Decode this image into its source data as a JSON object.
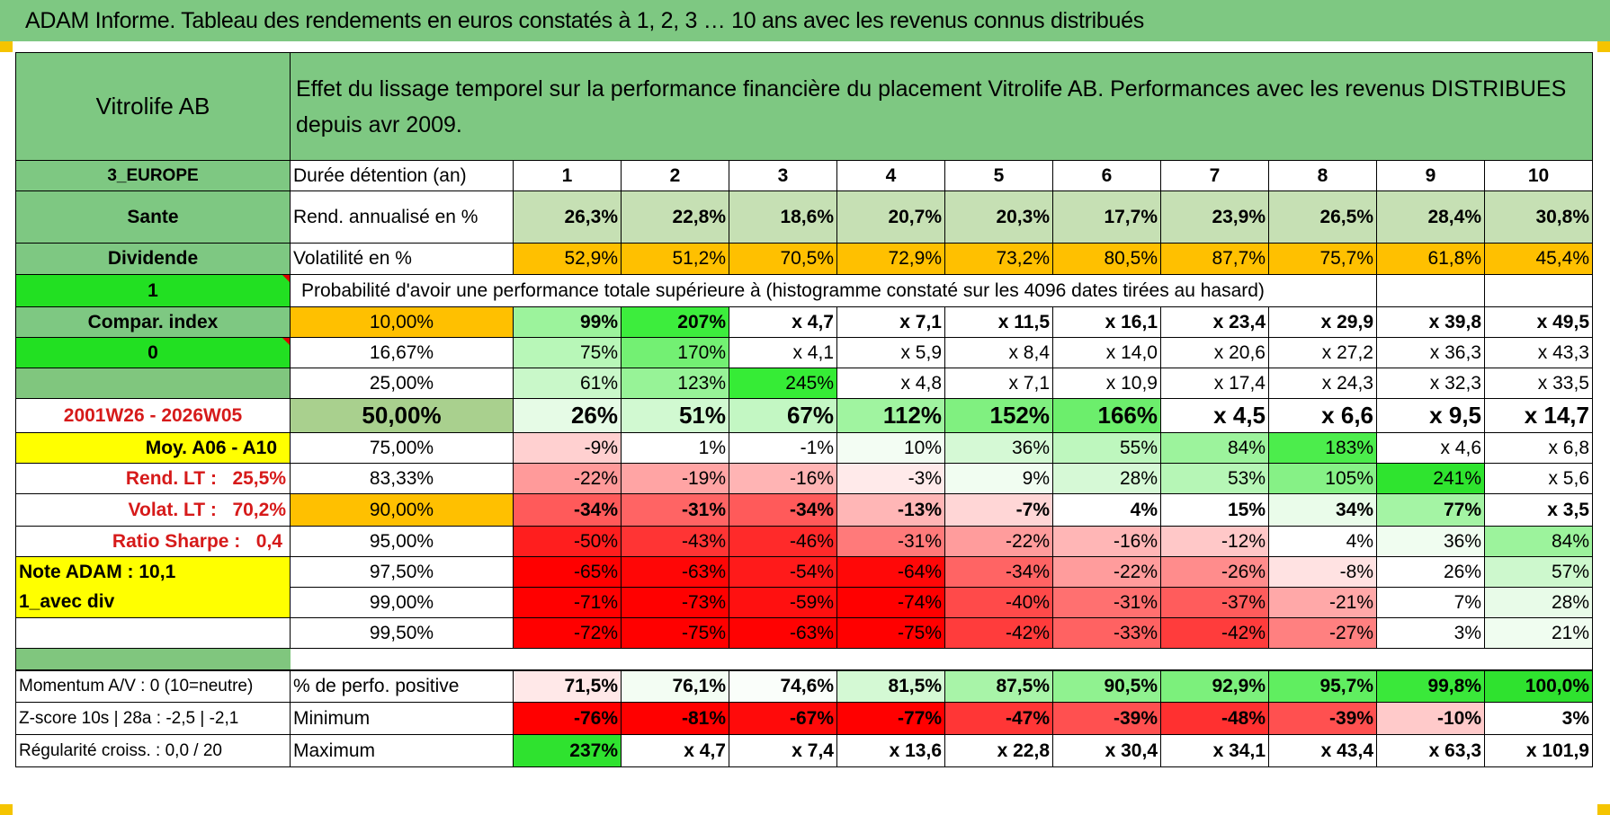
{
  "title": "ADAM Informe. Tableau des rendements en euros constatés à 1, 2, 3 … 10 ans avec les revenus connus distribués",
  "colors": {
    "header_green": "#7ec882",
    "lime": "#22e022",
    "yellow": "#ffff00",
    "orange": "#ffc000",
    "red_text": "#d61a1a"
  },
  "header": {
    "fund_name": "Vitrolife AB",
    "description": "Effet du lissage temporel sur la performance financière du placement Vitrolife AB. Performances avec les revenus DISTRIBUES depuis avr 2009."
  },
  "side": {
    "region": "3_EUROPE",
    "sector": "Sante",
    "dividend": "Dividende",
    "flag1": "1",
    "compar_index": "Compar. index",
    "flag0": "0",
    "period": "2001W26 - 2026W05",
    "moy": "Moy. A06 - A10",
    "rend_lt_label": "Rend. LT :",
    "rend_lt_value": "25,5%",
    "volat_lt_label": "Volat. LT :",
    "volat_lt_value": "70,2%",
    "sharpe_label": "Ratio Sharpe :",
    "sharpe_value": "0,4",
    "note": "Note ADAM : 10,1",
    "avec_div": "1_avec div"
  },
  "duration": {
    "label": "Durée détention (an)",
    "years": [
      "1",
      "2",
      "3",
      "4",
      "5",
      "6",
      "7",
      "8",
      "9",
      "10"
    ]
  },
  "rend": {
    "label": "Rend. annualisé en %",
    "values": [
      "26,3%",
      "22,8%",
      "18,6%",
      "20,7%",
      "20,3%",
      "17,7%",
      "23,9%",
      "26,5%",
      "28,4%",
      "30,8%"
    ]
  },
  "volat": {
    "label": "Volatilité en %",
    "values": [
      "52,9%",
      "51,2%",
      "70,5%",
      "72,9%",
      "73,2%",
      "80,5%",
      "87,7%",
      "75,7%",
      "61,8%",
      "45,4%"
    ]
  },
  "proba_title": "Probabilité d'avoir une performance totale supérieure à (histogramme constaté sur les 4096 dates tirées au hasard)",
  "quantiles": [
    {
      "p": "10,00%",
      "values": [
        "99%",
        "207%",
        "x 4,7",
        "x 7,1",
        "x 11,5",
        "x 16,1",
        "x 23,4",
        "x 29,9",
        "x 39,8",
        "x 49,5"
      ]
    },
    {
      "p": "16,67%",
      "values": [
        "75%",
        "170%",
        "x 4,1",
        "x 5,9",
        "x 8,4",
        "x 14,0",
        "x 20,6",
        "x 27,2",
        "x 36,3",
        "x 43,3"
      ]
    },
    {
      "p": "25,00%",
      "values": [
        "61%",
        "123%",
        "245%",
        "x 4,8",
        "x 7,1",
        "x 10,9",
        "x 17,4",
        "x 24,3",
        "x 32,3",
        "x 33,5"
      ]
    },
    {
      "p": "50,00%",
      "values": [
        "26%",
        "51%",
        "67%",
        "112%",
        "152%",
        "166%",
        "x 4,5",
        "x 6,6",
        "x 9,5",
        "x 14,7"
      ]
    },
    {
      "p": "75,00%",
      "values": [
        "-9%",
        "1%",
        "-1%",
        "10%",
        "36%",
        "55%",
        "84%",
        "183%",
        "x 4,6",
        "x 6,8"
      ]
    },
    {
      "p": "83,33%",
      "values": [
        "-22%",
        "-19%",
        "-16%",
        "-3%",
        "9%",
        "28%",
        "53%",
        "105%",
        "241%",
        "x 5,6"
      ]
    },
    {
      "p": "90,00%",
      "values": [
        "-34%",
        "-31%",
        "-34%",
        "-13%",
        "-7%",
        "4%",
        "15%",
        "34%",
        "77%",
        "x 3,5"
      ]
    },
    {
      "p": "95,00%",
      "values": [
        "-50%",
        "-43%",
        "-46%",
        "-31%",
        "-22%",
        "-16%",
        "-12%",
        "4%",
        "36%",
        "84%"
      ]
    },
    {
      "p": "97,50%",
      "values": [
        "-65%",
        "-63%",
        "-54%",
        "-64%",
        "-34%",
        "-22%",
        "-26%",
        "-8%",
        "26%",
        "57%"
      ]
    },
    {
      "p": "99,00%",
      "values": [
        "-71%",
        "-73%",
        "-59%",
        "-74%",
        "-40%",
        "-31%",
        "-37%",
        "-21%",
        "7%",
        "28%"
      ]
    },
    {
      "p": "99,50%",
      "values": [
        "-72%",
        "-75%",
        "-63%",
        "-75%",
        "-42%",
        "-33%",
        "-42%",
        "-27%",
        "3%",
        "21%"
      ]
    }
  ],
  "bottom": [
    {
      "side": "Momentum A/V : 0 (10=neutre)",
      "label": "% de perfo. positive",
      "values": [
        "71,5%",
        "76,1%",
        "74,6%",
        "81,5%",
        "87,5%",
        "90,5%",
        "92,9%",
        "95,7%",
        "99,8%",
        "100,0%"
      ]
    },
    {
      "side": "Z-score 10s | 28a : -2,5 | -2,1",
      "label": "Minimum",
      "values": [
        "-76%",
        "-81%",
        "-67%",
        "-77%",
        "-47%",
        "-39%",
        "-48%",
        "-39%",
        "-10%",
        "3%"
      ]
    },
    {
      "side": "Régularité croiss. : 0,0 / 20",
      "label": "Maximum",
      "values": [
        "237%",
        "x 4,7",
        "x 7,4",
        "x 13,6",
        "x 22,8",
        "x 30,4",
        "x 34,1",
        "x 43,4",
        "x 63,3",
        "x 101,9"
      ]
    }
  ]
}
